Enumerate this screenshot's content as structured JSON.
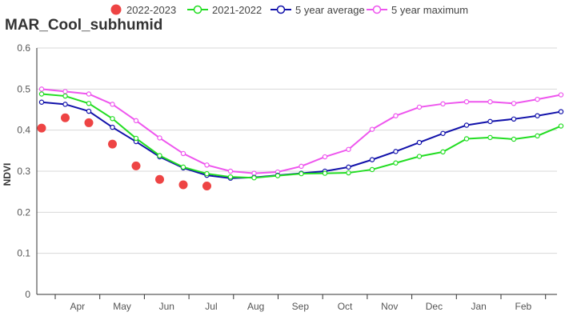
{
  "chart_data": {
    "type": "line",
    "title": "MAR_Cool_subhumid",
    "ylabel": "NDVI",
    "xlabel": "",
    "ylim": [
      0,
      0.6
    ],
    "yticks": [
      "0",
      "0.1",
      "0.2",
      "0.3",
      "0.4",
      "0.5",
      "0.6"
    ],
    "month_labels": [
      "Apr",
      "May",
      "Jun",
      "Jul",
      "Aug",
      "Sep",
      "Oct",
      "Nov",
      "Dec",
      "Jan",
      "Feb"
    ],
    "grid": true,
    "legend_position": "top",
    "series": [
      {
        "name": "2022-2023",
        "style": "dots",
        "color": "#ee4444",
        "values": [
          0.405,
          0.43,
          0.418,
          0.366,
          0.313,
          0.28,
          0.267,
          0.264
        ]
      },
      {
        "name": "2021-2022",
        "style": "line",
        "color": "#22dd22",
        "values": [
          0.488,
          0.483,
          0.465,
          0.428,
          0.38,
          0.338,
          0.31,
          0.294,
          0.286,
          0.284,
          0.289,
          0.294,
          0.295,
          0.296,
          0.304,
          0.32,
          0.336,
          0.347,
          0.379,
          0.382,
          0.378,
          0.386,
          0.41
        ]
      },
      {
        "name": "5 year average",
        "style": "line",
        "color": "#1111aa",
        "values": [
          0.468,
          0.463,
          0.446,
          0.407,
          0.372,
          0.335,
          0.308,
          0.29,
          0.283,
          0.285,
          0.29,
          0.295,
          0.3,
          0.31,
          0.328,
          0.348,
          0.37,
          0.392,
          0.412,
          0.421,
          0.427,
          0.435,
          0.445
        ]
      },
      {
        "name": "5 year maximum",
        "style": "line",
        "color": "#ee55ee",
        "values": [
          0.5,
          0.494,
          0.488,
          0.463,
          0.423,
          0.381,
          0.343,
          0.315,
          0.3,
          0.295,
          0.298,
          0.312,
          0.335,
          0.353,
          0.402,
          0.435,
          0.456,
          0.464,
          0.469,
          0.469,
          0.465,
          0.475,
          0.486
        ]
      }
    ]
  }
}
